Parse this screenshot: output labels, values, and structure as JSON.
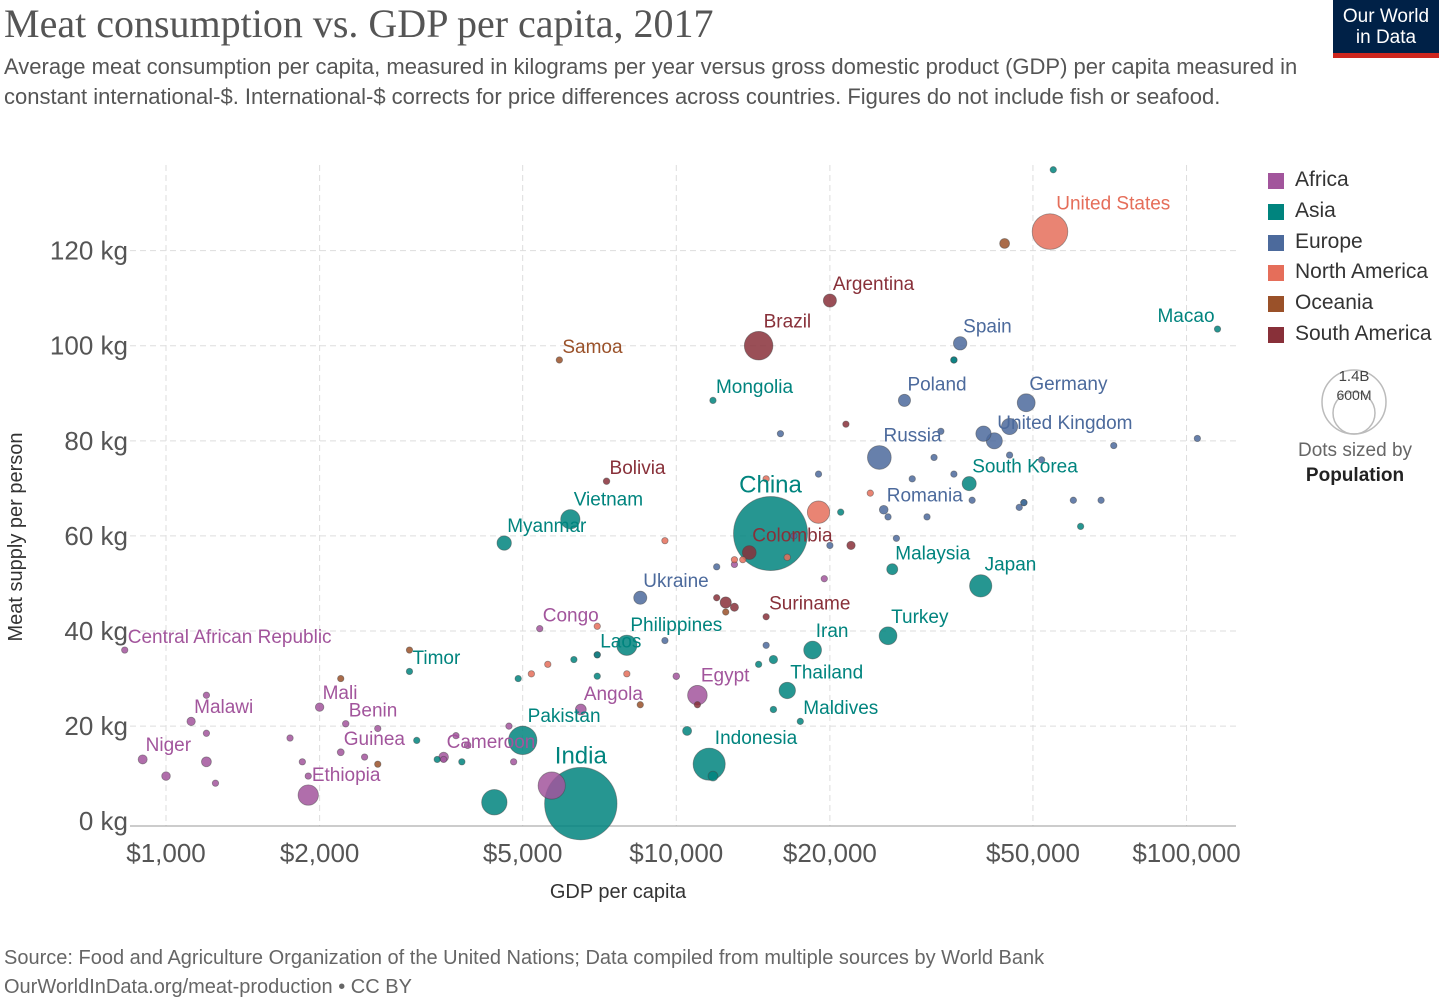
{
  "header": {
    "title": "Meat consumption vs. GDP per capita, 2017",
    "subtitle": "Average meat consumption per capita, measured in kilograms per year versus gross domestic product (GDP) per capita measured in constant international-$. International-$ corrects for price differences across countries. Figures do not include fish or seafood.",
    "logo_line1": "Our World",
    "logo_line2": "in Data"
  },
  "footer": {
    "source": "Source: Food and Agriculture Organization of the United Nations; Data compiled from multiple sources by World Bank",
    "link": "OurWorldInData.org/meat-production • CC BY"
  },
  "legend": {
    "regions": [
      {
        "name": "Africa",
        "color": "#a2559c"
      },
      {
        "name": "Asia",
        "color": "#00847e"
      },
      {
        "name": "Europe",
        "color": "#4c6a9c"
      },
      {
        "name": "North America",
        "color": "#e56e5a"
      },
      {
        "name": "Oceania",
        "color": "#9a5129"
      },
      {
        "name": "South America",
        "color": "#883039"
      }
    ],
    "size_large": "1.4B",
    "size_small": "600M",
    "size_caption_line1": "Dots sized by",
    "size_caption_line2": "Population"
  },
  "chart_data": {
    "type": "scatter",
    "title": "Meat consumption vs. GDP per capita, 2017",
    "xlabel": "GDP per capita",
    "ylabel": "Meat supply per person",
    "x_scale": "log",
    "xlim": [
      850,
      125000
    ],
    "ylim": [
      -1,
      138
    ],
    "x_ticks": [
      {
        "value": 1000,
        "label": "$1,000"
      },
      {
        "value": 2000,
        "label": "$2,000"
      },
      {
        "value": 5000,
        "label": "$5,000"
      },
      {
        "value": 10000,
        "label": "$10,000"
      },
      {
        "value": 20000,
        "label": "$20,000"
      },
      {
        "value": 50000,
        "label": "$50,000"
      },
      {
        "value": 100000,
        "label": "$100,000"
      }
    ],
    "y_ticks": [
      {
        "value": 0,
        "label": "0 kg"
      },
      {
        "value": 20,
        "label": "20 kg"
      },
      {
        "value": 40,
        "label": "40 kg"
      },
      {
        "value": 60,
        "label": "60 kg"
      },
      {
        "value": 80,
        "label": "80 kg"
      },
      {
        "value": 100,
        "label": "100 kg"
      },
      {
        "value": 120,
        "label": "120 kg"
      }
    ],
    "grid": true,
    "legend_position": "right",
    "points": [
      {
        "label": "United States",
        "region": "North America",
        "gdp": 54000,
        "meat": 124,
        "pop": 325
      },
      {
        "label": "China",
        "region": "Asia",
        "gdp": 15300,
        "meat": 60.5,
        "pop": 1400
      },
      {
        "label": "India",
        "region": "Asia",
        "gdp": 6500,
        "meat": 3.7,
        "pop": 1340
      },
      {
        "label": "Brazil",
        "region": "South America",
        "gdp": 14500,
        "meat": 100,
        "pop": 209
      },
      {
        "label": "Argentina",
        "region": "South America",
        "gdp": 20000,
        "meat": 109.5,
        "pop": 44
      },
      {
        "label": "Samoa",
        "region": "Oceania",
        "gdp": 5900,
        "meat": 97,
        "pop": 0.2
      },
      {
        "label": "Macao",
        "region": "Asia",
        "gdp": 115000,
        "meat": 103.5,
        "pop": 0.6
      },
      {
        "label": "Spain",
        "region": "Europe",
        "gdp": 36000,
        "meat": 100.5,
        "pop": 46
      },
      {
        "label": "Mongolia",
        "region": "Asia",
        "gdp": 11800,
        "meat": 88.5,
        "pop": 3
      },
      {
        "label": "Poland",
        "region": "Europe",
        "gdp": 28000,
        "meat": 88.5,
        "pop": 38
      },
      {
        "label": "Germany",
        "region": "Europe",
        "gdp": 48500,
        "meat": 88,
        "pop": 82
      },
      {
        "label": "United Kingdom",
        "region": "Europe",
        "gdp": 42000,
        "meat": 80,
        "pop": 66
      },
      {
        "label": "Russia",
        "region": "Europe",
        "gdp": 25000,
        "meat": 76.5,
        "pop": 144
      },
      {
        "label": "South Korea",
        "region": "Asia",
        "gdp": 37500,
        "meat": 71,
        "pop": 51
      },
      {
        "label": "Bolivia",
        "region": "South America",
        "gdp": 7300,
        "meat": 71.5,
        "pop": 11
      },
      {
        "label": "Vietnam",
        "region": "Asia",
        "gdp": 6200,
        "meat": 63.5,
        "pop": 95
      },
      {
        "label": "Romania",
        "region": "Europe",
        "gdp": 25500,
        "meat": 65.5,
        "pop": 19.5
      },
      {
        "label": "Myanmar",
        "region": "Asia",
        "gdp": 4600,
        "meat": 58.5,
        "pop": 53
      },
      {
        "label": "Colombia",
        "region": "South America",
        "gdp": 13900,
        "meat": 56.5,
        "pop": 49
      },
      {
        "label": "Malaysia",
        "region": "Asia",
        "gdp": 26500,
        "meat": 53,
        "pop": 31
      },
      {
        "label": "Japan",
        "region": "Asia",
        "gdp": 39500,
        "meat": 49.5,
        "pop": 127
      },
      {
        "label": "Ukraine",
        "region": "Europe",
        "gdp": 8500,
        "meat": 47,
        "pop": 44
      },
      {
        "label": "Suriname",
        "region": "South America",
        "gdp": 15000,
        "meat": 43,
        "pop": 0.6
      },
      {
        "label": "Turkey",
        "region": "Asia",
        "gdp": 26000,
        "meat": 39,
        "pop": 81
      },
      {
        "label": "Congo",
        "region": "Africa",
        "gdp": 5400,
        "meat": 40.5,
        "pop": 5
      },
      {
        "label": "Central African Republic",
        "region": "Africa",
        "gdp": 830,
        "meat": 36,
        "pop": 4.7
      },
      {
        "label": "Philippines",
        "region": "Asia",
        "gdp": 8000,
        "meat": 37,
        "pop": 105
      },
      {
        "label": "Iran",
        "region": "Asia",
        "gdp": 18500,
        "meat": 36,
        "pop": 81
      },
      {
        "label": "Timor",
        "region": "Asia",
        "gdp": 3000,
        "meat": 31.5,
        "pop": 1.3
      },
      {
        "label": "Laos",
        "region": "Asia",
        "gdp": 7000,
        "meat": 35,
        "pop": 7
      },
      {
        "label": "Thailand",
        "region": "Asia",
        "gdp": 16500,
        "meat": 27.5,
        "pop": 69
      },
      {
        "label": "Egypt",
        "region": "Africa",
        "gdp": 11000,
        "meat": 26.5,
        "pop": 98
      },
      {
        "label": "Mali",
        "region": "Africa",
        "gdp": 2000,
        "meat": 24,
        "pop": 18.5
      },
      {
        "label": "Angola",
        "region": "Africa",
        "gdp": 6500,
        "meat": 23.5,
        "pop": 30
      },
      {
        "label": "Malawi",
        "region": "Africa",
        "gdp": 1120,
        "meat": 21,
        "pop": 18
      },
      {
        "label": "Maldives",
        "region": "Asia",
        "gdp": 17500,
        "meat": 21,
        "pop": 0.5
      },
      {
        "label": "Benin",
        "region": "Africa",
        "gdp": 2250,
        "meat": 20.5,
        "pop": 11
      },
      {
        "label": "Pakistan",
        "region": "Asia",
        "gdp": 5000,
        "meat": 17,
        "pop": 207
      },
      {
        "label": "Indonesia",
        "region": "Asia",
        "gdp": 11600,
        "meat": 12,
        "pop": 264
      },
      {
        "label": "Guinea",
        "region": "Africa",
        "gdp": 2200,
        "meat": 14.5,
        "pop": 12.4
      },
      {
        "label": "Niger",
        "region": "Africa",
        "gdp": 900,
        "meat": 13,
        "pop": 21
      },
      {
        "label": "Cameroon",
        "region": "Africa",
        "gdp": 3500,
        "meat": 13.5,
        "pop": 24
      },
      {
        "label": "Ethiopia",
        "region": "Africa",
        "gdp": 1900,
        "meat": 5.5,
        "pop": 106
      },
      {
        "label": "",
        "region": "Asia",
        "gdp": 54800,
        "meat": 137,
        "pop": 0.5
      },
      {
        "label": "",
        "region": "Oceania",
        "gdp": 44000,
        "meat": 121.5,
        "pop": 25
      },
      {
        "label": "",
        "region": "Asia",
        "gdp": 4400,
        "meat": 4,
        "pop": 165
      },
      {
        "label": "",
        "region": "Africa",
        "gdp": 5700,
        "meat": 7.5,
        "pop": 190
      },
      {
        "label": "",
        "region": "North America",
        "gdp": 19000,
        "meat": 65,
        "pop": 128
      },
      {
        "label": "",
        "region": "Europe",
        "gdp": 45000,
        "meat": 83,
        "pop": 67
      },
      {
        "label": "",
        "region": "Europe",
        "gdp": 40000,
        "meat": 81.5,
        "pop": 60
      },
      {
        "label": "",
        "region": "Europe",
        "gdp": 35000,
        "meat": 97,
        "pop": 10
      },
      {
        "label": "",
        "region": "Europe",
        "gdp": 33000,
        "meat": 82,
        "pop": 10
      },
      {
        "label": "",
        "region": "Europe",
        "gdp": 52000,
        "meat": 76,
        "pop": 9
      },
      {
        "label": "",
        "region": "Europe",
        "gdp": 45000,
        "meat": 77,
        "pop": 9
      },
      {
        "label": "",
        "region": "Europe",
        "gdp": 60000,
        "meat": 67.5,
        "pop": 5.5
      },
      {
        "label": "",
        "region": "Europe",
        "gdp": 68000,
        "meat": 67.5,
        "pop": 5.5
      },
      {
        "label": "",
        "region": "Europe",
        "gdp": 48000,
        "meat": 67,
        "pop": 5.7
      },
      {
        "label": "",
        "region": "Europe",
        "gdp": 47000,
        "meat": 66,
        "pop": 5.7
      },
      {
        "label": "",
        "region": "Europe",
        "gdp": 38000,
        "meat": 67.5,
        "pop": 4
      },
      {
        "label": "",
        "region": "Europe",
        "gdp": 35000,
        "meat": 73,
        "pop": 8
      },
      {
        "label": "",
        "region": "Europe",
        "gdp": 32000,
        "meat": 76.5,
        "pop": 10
      },
      {
        "label": "",
        "region": "Europe",
        "gdp": 29000,
        "meat": 72,
        "pop": 3
      },
      {
        "label": "",
        "region": "Europe",
        "gdp": 31000,
        "meat": 64,
        "pop": 4
      },
      {
        "label": "",
        "region": "Europe",
        "gdp": 26000,
        "meat": 64,
        "pop": 3
      },
      {
        "label": "",
        "region": "Europe",
        "gdp": 27000,
        "meat": 59.5,
        "pop": 7
      },
      {
        "label": "",
        "region": "Europe",
        "gdp": 19000,
        "meat": 73,
        "pop": 2
      },
      {
        "label": "",
        "region": "Europe",
        "gdp": 16000,
        "meat": 81.5,
        "pop": 3
      },
      {
        "label": "",
        "region": "Europe",
        "gdp": 17000,
        "meat": 60,
        "pop": 3
      },
      {
        "label": "",
        "region": "Europe",
        "gdp": 20000,
        "meat": 58,
        "pop": 3.5
      },
      {
        "label": "",
        "region": "Europe",
        "gdp": 12000,
        "meat": 53.5,
        "pop": 9.5
      },
      {
        "label": "",
        "region": "Europe",
        "gdp": 15000,
        "meat": 37,
        "pop": 3
      },
      {
        "label": "",
        "region": "Europe",
        "gdp": 9500,
        "meat": 38,
        "pop": 2.8
      },
      {
        "label": "",
        "region": "Europe",
        "gdp": 72000,
        "meat": 79,
        "pop": 4.8
      },
      {
        "label": "",
        "region": "Europe",
        "gdp": 105000,
        "meat": 80.5,
        "pop": 0.6
      },
      {
        "label": "",
        "region": "Asia",
        "gdp": 62000,
        "meat": 62,
        "pop": 3
      },
      {
        "label": "",
        "region": "Asia",
        "gdp": 48000,
        "meat": 67,
        "pop": 9.5
      },
      {
        "label": "",
        "region": "Asia",
        "gdp": 35000,
        "meat": 97,
        "pop": 1.6
      },
      {
        "label": "",
        "region": "Asia",
        "gdp": 21000,
        "meat": 65,
        "pop": 4.5
      },
      {
        "label": "",
        "region": "Asia",
        "gdp": 15500,
        "meat": 34,
        "pop": 18
      },
      {
        "label": "",
        "region": "Asia",
        "gdp": 15500,
        "meat": 23.5,
        "pop": 11
      },
      {
        "label": "",
        "region": "Asia",
        "gdp": 14500,
        "meat": 33,
        "pop": 10
      },
      {
        "label": "",
        "region": "Asia",
        "gdp": 10500,
        "meat": 19,
        "pop": 21
      },
      {
        "label": "",
        "region": "Asia",
        "gdp": 11800,
        "meat": 9.5,
        "pop": 25
      },
      {
        "label": "",
        "region": "Asia",
        "gdp": 7000,
        "meat": 30.5,
        "pop": 2.5
      },
      {
        "label": "",
        "region": "Asia",
        "gdp": 6300,
        "meat": 34,
        "pop": 3
      },
      {
        "label": "",
        "region": "Asia",
        "gdp": 3100,
        "meat": 17,
        "pop": 6
      },
      {
        "label": "",
        "region": "Asia",
        "gdp": 3400,
        "meat": 13,
        "pop": 8
      },
      {
        "label": "",
        "region": "Asia",
        "gdp": 3800,
        "meat": 12.5,
        "pop": 3
      },
      {
        "label": "",
        "region": "Asia",
        "gdp": 4900,
        "meat": 30,
        "pop": 6
      },
      {
        "label": "",
        "region": "North America",
        "gdp": 9500,
        "meat": 59,
        "pop": 0.3
      },
      {
        "label": "",
        "region": "North America",
        "gdp": 13000,
        "meat": 55,
        "pop": 1
      },
      {
        "label": "",
        "region": "North America",
        "gdp": 16500,
        "meat": 55.5,
        "pop": 11
      },
      {
        "label": "",
        "region": "North America",
        "gdp": 15000,
        "meat": 72,
        "pop": 0.4
      },
      {
        "label": "",
        "region": "North America",
        "gdp": 7000,
        "meat": 41,
        "pop": 3.5
      },
      {
        "label": "",
        "region": "North America",
        "gdp": 5600,
        "meat": 33,
        "pop": 2
      },
      {
        "label": "",
        "region": "North America",
        "gdp": 5200,
        "meat": 31,
        "pop": 10.6
      },
      {
        "label": "",
        "region": "North America",
        "gdp": 8000,
        "meat": 31,
        "pop": 6.5
      },
      {
        "label": "",
        "region": "North America",
        "gdp": 24000,
        "meat": 69,
        "pop": 3.5
      },
      {
        "label": "",
        "region": "North America",
        "gdp": 13500,
        "meat": 55,
        "pop": 2
      },
      {
        "label": "",
        "region": "Oceania",
        "gdp": 2200,
        "meat": 30,
        "pop": 8
      },
      {
        "label": "",
        "region": "Oceania",
        "gdp": 3000,
        "meat": 36,
        "pop": 0.6
      },
      {
        "label": "",
        "region": "Oceania",
        "gdp": 2600,
        "meat": 12,
        "pop": 1.3
      },
      {
        "label": "",
        "region": "Oceania",
        "gdp": 8500,
        "meat": 24.5,
        "pop": 0.9
      },
      {
        "label": "",
        "region": "Oceania",
        "gdp": 12500,
        "meat": 44,
        "pop": 0.2
      },
      {
        "label": "",
        "region": "South America",
        "gdp": 13000,
        "meat": 45,
        "pop": 17
      },
      {
        "label": "",
        "region": "South America",
        "gdp": 12500,
        "meat": 46,
        "pop": 32
      },
      {
        "label": "",
        "region": "South America",
        "gdp": 12000,
        "meat": 47,
        "pop": 7
      },
      {
        "label": "",
        "region": "South America",
        "gdp": 21500,
        "meat": 83.5,
        "pop": 3.5
      },
      {
        "label": "",
        "region": "South America",
        "gdp": 22000,
        "meat": 58,
        "pop": 18
      },
      {
        "label": "",
        "region": "South America",
        "gdp": 11000,
        "meat": 24.5,
        "pop": 3
      },
      {
        "label": "",
        "region": "Africa",
        "gdp": 13000,
        "meat": 54,
        "pop": 2
      },
      {
        "label": "",
        "region": "Africa",
        "gdp": 19500,
        "meat": 51,
        "pop": 2.3
      },
      {
        "label": "",
        "region": "Africa",
        "gdp": 10000,
        "meat": 30.5,
        "pop": 11.5
      },
      {
        "label": "",
        "region": "Africa",
        "gdp": 7000,
        "meat": 35,
        "pop": 8
      },
      {
        "label": "",
        "region": "Africa",
        "gdp": 1200,
        "meat": 26.5,
        "pop": 2
      },
      {
        "label": "",
        "region": "Africa",
        "gdp": 1200,
        "meat": 18.5,
        "pop": 2
      },
      {
        "label": "",
        "region": "Africa",
        "gdp": 1200,
        "meat": 12.5,
        "pop": 25
      },
      {
        "label": "",
        "region": "Africa",
        "gdp": 1250,
        "meat": 8,
        "pop": 2
      },
      {
        "label": "",
        "region": "Africa",
        "gdp": 1000,
        "meat": 9.5,
        "pop": 19
      },
      {
        "label": "",
        "region": "Africa",
        "gdp": 1750,
        "meat": 17.5,
        "pop": 4
      },
      {
        "label": "",
        "region": "Africa",
        "gdp": 1850,
        "meat": 12.5,
        "pop": 2
      },
      {
        "label": "",
        "region": "Africa",
        "gdp": 1900,
        "meat": 9.5,
        "pop": 2
      },
      {
        "label": "",
        "region": "Africa",
        "gdp": 2450,
        "meat": 13.5,
        "pop": 8
      },
      {
        "label": "",
        "region": "Africa",
        "gdp": 2600,
        "meat": 19.5,
        "pop": 2
      },
      {
        "label": "",
        "region": "Africa",
        "gdp": 3700,
        "meat": 18,
        "pop": 10
      },
      {
        "label": "",
        "region": "Africa",
        "gdp": 3900,
        "meat": 16,
        "pop": 12
      },
      {
        "label": "",
        "region": "Africa",
        "gdp": 4800,
        "meat": 12.5,
        "pop": 8
      },
      {
        "label": "",
        "region": "Africa",
        "gdp": 3500,
        "meat": 13,
        "pop": 3
      },
      {
        "label": "",
        "region": "Africa",
        "gdp": 4700,
        "meat": 20,
        "pop": 2
      }
    ]
  }
}
